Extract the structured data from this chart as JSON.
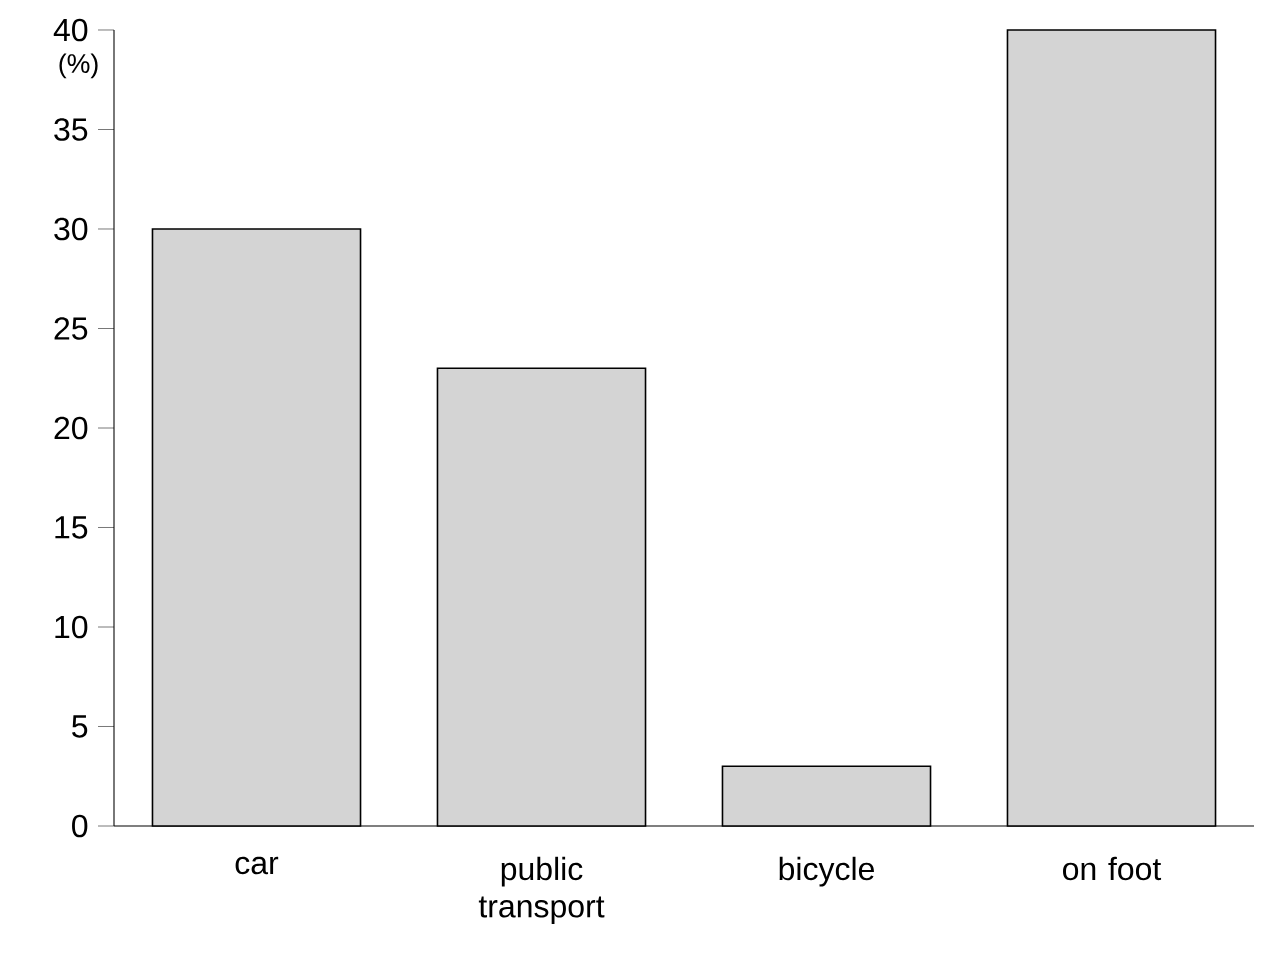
{
  "chart_data": {
    "type": "bar",
    "ylabel": "(%)",
    "categories": [
      "car",
      "public transport",
      "bicycle",
      "on foot"
    ],
    "values": [
      30,
      23,
      3,
      40
    ],
    "color": "#d4d4d4",
    "ylim": [
      0,
      40
    ],
    "yticks": [
      0,
      5,
      10,
      15,
      20,
      25,
      30,
      35,
      40
    ]
  }
}
